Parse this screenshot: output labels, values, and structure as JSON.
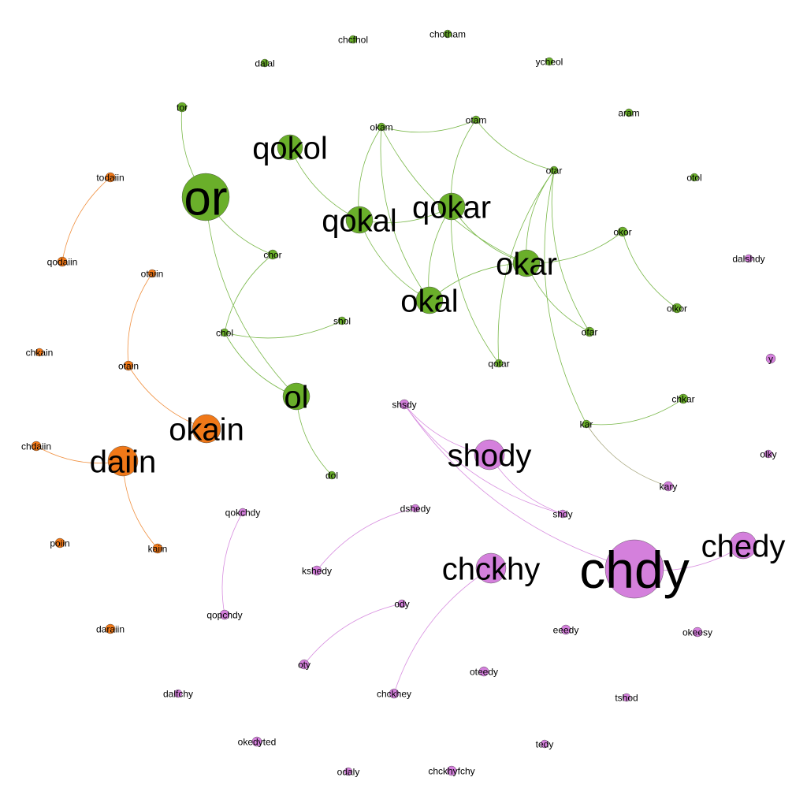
{
  "colors": {
    "green": "#6aaf2a",
    "orange": "#f07818",
    "purple": "#d480dc",
    "edge_green": "#7ab84a",
    "edge_orange": "#f09040",
    "edge_purple": "#d890e0",
    "edge_mixed": "#a8a880"
  },
  "nodes": [
    {
      "id": "chcfhol",
      "label": "chcfhol",
      "group": "green"
    },
    {
      "id": "chotham",
      "label": "chotham",
      "group": "green"
    },
    {
      "id": "dalal",
      "label": "dalal",
      "group": "green"
    },
    {
      "id": "ycheol",
      "label": "ycheol",
      "group": "green"
    },
    {
      "id": "tor",
      "label": "tor",
      "group": "green"
    },
    {
      "id": "aram",
      "label": "aram",
      "group": "green"
    },
    {
      "id": "okam",
      "label": "okam",
      "group": "green"
    },
    {
      "id": "otam",
      "label": "otam",
      "group": "green"
    },
    {
      "id": "qokol",
      "label": "qokol",
      "group": "green"
    },
    {
      "id": "otar",
      "label": "otar",
      "group": "green"
    },
    {
      "id": "otol",
      "label": "otol",
      "group": "green"
    },
    {
      "id": "or",
      "label": "or",
      "group": "green"
    },
    {
      "id": "qokar",
      "label": "qokar",
      "group": "green"
    },
    {
      "id": "qokal",
      "label": "qokal",
      "group": "green"
    },
    {
      "id": "okor",
      "label": "okor",
      "group": "green"
    },
    {
      "id": "chor",
      "label": "chor",
      "group": "green"
    },
    {
      "id": "okar",
      "label": "okar",
      "group": "green"
    },
    {
      "id": "okal",
      "label": "okal",
      "group": "green"
    },
    {
      "id": "olkor",
      "label": "olkor",
      "group": "green"
    },
    {
      "id": "shol",
      "label": "shol",
      "group": "green"
    },
    {
      "id": "chol",
      "label": "chol",
      "group": "green"
    },
    {
      "id": "ofar",
      "label": "ofar",
      "group": "green"
    },
    {
      "id": "qotar",
      "label": "qotar",
      "group": "green"
    },
    {
      "id": "ol",
      "label": "ol",
      "group": "green"
    },
    {
      "id": "chkar",
      "label": "chkar",
      "group": "green"
    },
    {
      "id": "kar",
      "label": "kar",
      "group": "green"
    },
    {
      "id": "dol",
      "label": "dol",
      "group": "green"
    },
    {
      "id": "todaiin",
      "label": "todaiin",
      "group": "orange"
    },
    {
      "id": "qodaiin",
      "label": "qodaiin",
      "group": "orange"
    },
    {
      "id": "otaiin",
      "label": "otaiin",
      "group": "orange"
    },
    {
      "id": "chkain",
      "label": "chkain",
      "group": "orange"
    },
    {
      "id": "otain",
      "label": "otain",
      "group": "orange"
    },
    {
      "id": "okain",
      "label": "okain",
      "group": "orange"
    },
    {
      "id": "chdaiin",
      "label": "chdaiin",
      "group": "orange"
    },
    {
      "id": "daiin",
      "label": "daiin",
      "group": "orange"
    },
    {
      "id": "poiin",
      "label": "poiin",
      "group": "orange"
    },
    {
      "id": "kaiin",
      "label": "kaiin",
      "group": "orange"
    },
    {
      "id": "daraiin",
      "label": "daraiin",
      "group": "orange"
    },
    {
      "id": "dalshdy",
      "label": "dalshdy",
      "group": "purple"
    },
    {
      "id": "y",
      "label": "y",
      "group": "purple"
    },
    {
      "id": "shsdy",
      "label": "shsdy",
      "group": "purple"
    },
    {
      "id": "shody",
      "label": "shody",
      "group": "purple"
    },
    {
      "id": "olky",
      "label": "olky",
      "group": "purple"
    },
    {
      "id": "kary",
      "label": "kary",
      "group": "purple"
    },
    {
      "id": "qokchdy",
      "label": "qokchdy",
      "group": "purple"
    },
    {
      "id": "dshedy",
      "label": "dshedy",
      "group": "purple"
    },
    {
      "id": "shdy",
      "label": "shdy",
      "group": "purple"
    },
    {
      "id": "chedy",
      "label": "chedy",
      "group": "purple"
    },
    {
      "id": "chdy",
      "label": "chdy",
      "group": "purple"
    },
    {
      "id": "chckhy",
      "label": "chckhy",
      "group": "purple"
    },
    {
      "id": "kshedy",
      "label": "kshedy",
      "group": "purple"
    },
    {
      "id": "qopchdy",
      "label": "qopchdy",
      "group": "purple"
    },
    {
      "id": "ody",
      "label": "ody",
      "group": "purple"
    },
    {
      "id": "eeedy",
      "label": "eeedy",
      "group": "purple"
    },
    {
      "id": "okeesy",
      "label": "okeesy",
      "group": "purple"
    },
    {
      "id": "oty",
      "label": "oty",
      "group": "purple"
    },
    {
      "id": "oteedy",
      "label": "oteedy",
      "group": "purple"
    },
    {
      "id": "dalfchy",
      "label": "dalfchy",
      "group": "purple"
    },
    {
      "id": "chckhey",
      "label": "chckhey",
      "group": "purple"
    },
    {
      "id": "tshod",
      "label": "tshod",
      "group": "purple"
    },
    {
      "id": "okedyted",
      "label": "okedyted",
      "group": "purple"
    },
    {
      "id": "tedy",
      "label": "tedy",
      "group": "purple"
    },
    {
      "id": "odaly",
      "label": "odaly",
      "group": "purple"
    },
    {
      "id": "chckhyfchy",
      "label": "chckhyfchy",
      "group": "purple"
    }
  ],
  "edges": [
    {
      "source": "tor",
      "target": "or"
    },
    {
      "source": "or",
      "target": "chor"
    },
    {
      "source": "or",
      "target": "ol"
    },
    {
      "source": "chor",
      "target": "chol"
    },
    {
      "source": "chol",
      "target": "shol"
    },
    {
      "source": "chol",
      "target": "ol"
    },
    {
      "source": "ol",
      "target": "dol"
    },
    {
      "source": "qokol",
      "target": "qokal"
    },
    {
      "source": "okam",
      "target": "otam"
    },
    {
      "source": "okam",
      "target": "qokal"
    },
    {
      "source": "okam",
      "target": "okar"
    },
    {
      "source": "okam",
      "target": "okal"
    },
    {
      "source": "otam",
      "target": "otar"
    },
    {
      "source": "otam",
      "target": "qokar"
    },
    {
      "source": "otar",
      "target": "okar"
    },
    {
      "source": "otar",
      "target": "qotar"
    },
    {
      "source": "otar",
      "target": "ofar"
    },
    {
      "source": "otar",
      "target": "kar"
    },
    {
      "source": "qokal",
      "target": "okal"
    },
    {
      "source": "qokal",
      "target": "qokar"
    },
    {
      "source": "qokar",
      "target": "okal"
    },
    {
      "source": "qokar",
      "target": "okar"
    },
    {
      "source": "qokar",
      "target": "qotar"
    },
    {
      "source": "okar",
      "target": "okal"
    },
    {
      "source": "okar",
      "target": "okor"
    },
    {
      "source": "okar",
      "target": "ofar"
    },
    {
      "source": "okor",
      "target": "olkor"
    },
    {
      "source": "kar",
      "target": "chkar"
    },
    {
      "source": "kar",
      "target": "kary"
    },
    {
      "source": "todaiin",
      "target": "qodaiin"
    },
    {
      "source": "otaiin",
      "target": "otain"
    },
    {
      "source": "otain",
      "target": "okain"
    },
    {
      "source": "chdaiin",
      "target": "daiin"
    },
    {
      "source": "daiin",
      "target": "kaiin"
    },
    {
      "source": "shsdy",
      "target": "shody"
    },
    {
      "source": "shsdy",
      "target": "shdy"
    },
    {
      "source": "shsdy",
      "target": "chdy"
    },
    {
      "source": "shody",
      "target": "shdy"
    },
    {
      "source": "chdy",
      "target": "chedy"
    },
    {
      "source": "dshedy",
      "target": "kshedy"
    },
    {
      "source": "qokchdy",
      "target": "qopchdy"
    },
    {
      "source": "ody",
      "target": "oty"
    },
    {
      "source": "chckhy",
      "target": "chckhey"
    }
  ]
}
